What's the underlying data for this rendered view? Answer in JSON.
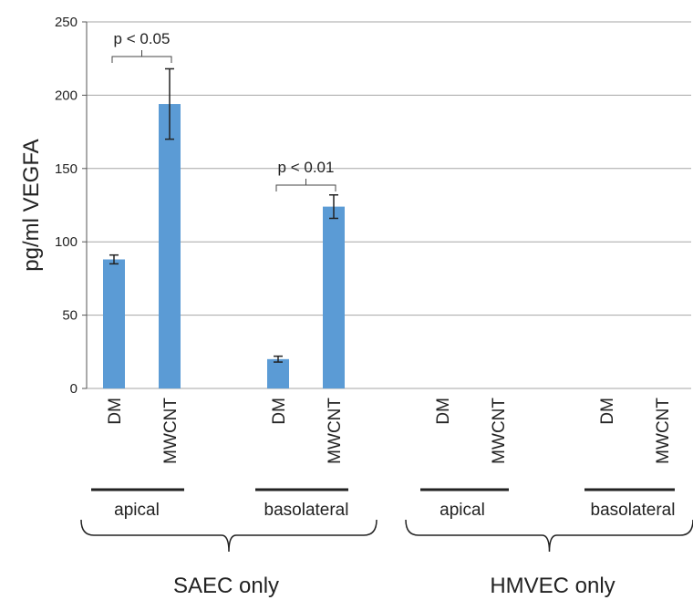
{
  "chart_data": {
    "type": "bar",
    "ylabel": "pg/ml VEGFA",
    "ylim": [
      0,
      250
    ],
    "yticks": [
      0,
      50,
      100,
      150,
      200,
      250
    ],
    "grid": true,
    "bar_color": "#5b9bd5",
    "categories": [
      "DM",
      "MWCNT",
      "DM",
      "MWCNT",
      "DM",
      "MWCNT",
      "DM",
      "MWCNT"
    ],
    "values": [
      88,
      194,
      20,
      124,
      null,
      null,
      null,
      null
    ],
    "errors": [
      3,
      24,
      2,
      8,
      null,
      null,
      null,
      null
    ],
    "subgroups": [
      {
        "label": "apical"
      },
      {
        "label": "basolateral"
      },
      {
        "label": "apical"
      },
      {
        "label": "basolateral"
      }
    ],
    "groups": [
      {
        "label": "SAEC only"
      },
      {
        "label": "HMVEC only"
      }
    ],
    "annotations": [
      {
        "text": "p < 0.05",
        "between": [
          0,
          1
        ]
      },
      {
        "text": "p < 0.01",
        "between": [
          2,
          3
        ]
      }
    ]
  }
}
